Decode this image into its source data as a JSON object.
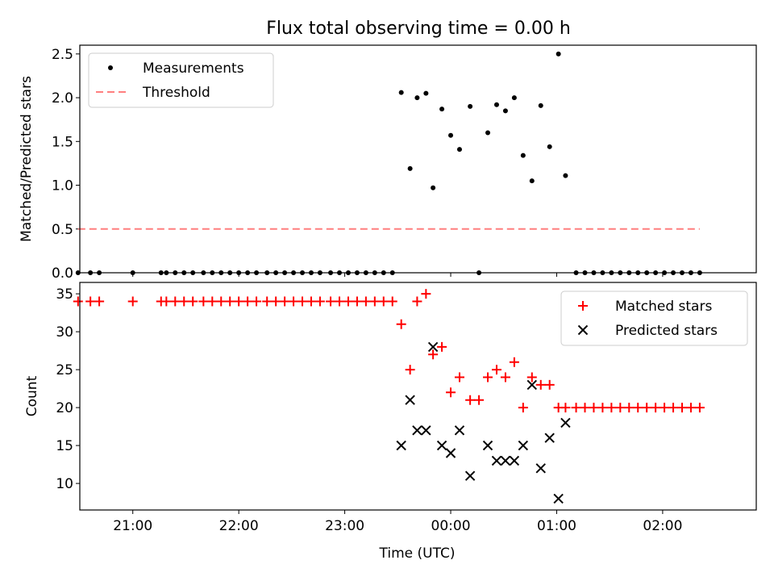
{
  "chart_data": [
    {
      "type": "scatter",
      "title": "Flux total observing time = 0.00 h",
      "ylabel": "Matched/Predicted stars",
      "xlabel": "",
      "xlim": [
        "20:30",
        "02:53"
      ],
      "ylim": [
        0,
        2.6
      ],
      "yticks": [
        "0.0",
        "0.5",
        "1.0",
        "1.5",
        "2.0",
        "2.5"
      ],
      "legend_position": "top-left",
      "series": [
        {
          "name": "Measurements",
          "marker": "dot",
          "color": "#000000",
          "x": [
            "20:29",
            "20:36",
            "20:41",
            "21:00",
            "21:16",
            "21:19",
            "21:24",
            "21:29",
            "21:34",
            "21:40",
            "21:45",
            "21:50",
            "21:55",
            "22:00",
            "22:05",
            "22:10",
            "22:16",
            "22:21",
            "22:26",
            "22:31",
            "22:36",
            "22:41",
            "22:46",
            "22:52",
            "22:57",
            "23:02",
            "23:07",
            "23:12",
            "23:17",
            "23:22",
            "23:27",
            "23:32",
            "23:37",
            "23:41",
            "23:46",
            "23:50",
            "23:55",
            "00:00",
            "00:05",
            "00:11",
            "00:16",
            "00:21",
            "00:26",
            "00:31",
            "00:36",
            "00:41",
            "00:46",
            "00:51",
            "00:56",
            "01:01",
            "01:05",
            "01:11",
            "01:16",
            "01:21",
            "01:26",
            "01:31",
            "01:36",
            "01:41",
            "01:46",
            "01:51",
            "01:56",
            "02:01",
            "02:06",
            "02:11",
            "02:16",
            "02:21"
          ],
          "y": [
            0,
            0,
            0,
            0,
            0,
            0,
            0,
            0,
            0,
            0,
            0,
            0,
            0,
            0,
            0,
            0,
            0,
            0,
            0,
            0,
            0,
            0,
            0,
            0,
            0,
            0,
            0,
            0,
            0,
            0,
            0,
            2.06,
            1.19,
            2.0,
            2.05,
            0.97,
            1.87,
            1.57,
            1.41,
            1.9,
            0,
            1.6,
            1.92,
            1.85,
            2.0,
            1.34,
            1.05,
            1.91,
            1.44,
            2.5,
            1.11,
            0,
            0,
            0,
            0,
            0,
            0,
            0,
            0,
            0,
            0,
            0,
            0,
            0,
            0,
            0
          ]
        },
        {
          "name": "Threshold",
          "style": "dashed",
          "color": "#ff7f7f",
          "x": [
            "20:29",
            "02:21"
          ],
          "y": [
            0.5,
            0.5
          ]
        }
      ]
    },
    {
      "type": "scatter",
      "title": "",
      "ylabel": "Count",
      "xlabel": "Time (UTC)",
      "xlim": [
        "20:30",
        "02:53"
      ],
      "ylim": [
        6.5,
        36.5
      ],
      "yticks": [
        "10",
        "15",
        "20",
        "25",
        "30",
        "35"
      ],
      "xticks": [
        "21:00",
        "22:00",
        "23:00",
        "00:00",
        "01:00",
        "02:00"
      ],
      "legend_position": "top-right",
      "series": [
        {
          "name": "Matched stars",
          "marker": "plus",
          "color": "#ff0000",
          "x": [
            "20:29",
            "20:36",
            "20:41",
            "21:00",
            "21:16",
            "21:19",
            "21:24",
            "21:29",
            "21:34",
            "21:40",
            "21:45",
            "21:50",
            "21:55",
            "22:00",
            "22:05",
            "22:10",
            "22:16",
            "22:21",
            "22:26",
            "22:31",
            "22:36",
            "22:41",
            "22:46",
            "22:52",
            "22:57",
            "23:02",
            "23:07",
            "23:12",
            "23:17",
            "23:22",
            "23:27",
            "23:32",
            "23:37",
            "23:41",
            "23:46",
            "23:50",
            "23:55",
            "00:00",
            "00:05",
            "00:11",
            "00:16",
            "00:21",
            "00:26",
            "00:31",
            "00:36",
            "00:41",
            "00:46",
            "00:51",
            "00:56",
            "01:01",
            "01:05",
            "01:11",
            "01:16",
            "01:21",
            "01:26",
            "01:31",
            "01:36",
            "01:41",
            "01:46",
            "01:51",
            "01:56",
            "02:01",
            "02:06",
            "02:11",
            "02:16",
            "02:21"
          ],
          "y": [
            34,
            34,
            34,
            34,
            34,
            34,
            34,
            34,
            34,
            34,
            34,
            34,
            34,
            34,
            34,
            34,
            34,
            34,
            34,
            34,
            34,
            34,
            34,
            34,
            34,
            34,
            34,
            34,
            34,
            34,
            34,
            31,
            25,
            34,
            35,
            27,
            28,
            22,
            24,
            21,
            21,
            24,
            25,
            24,
            26,
            20,
            24,
            23,
            23,
            20,
            20,
            20,
            20,
            20,
            20,
            20,
            20,
            20,
            20,
            20,
            20,
            20,
            20,
            20,
            20,
            20
          ]
        },
        {
          "name": "Predicted stars",
          "marker": "x",
          "color": "#000000",
          "x": [
            "23:32",
            "23:37",
            "23:41",
            "23:46",
            "23:50",
            "23:55",
            "00:00",
            "00:05",
            "00:11",
            "00:21",
            "00:26",
            "00:31",
            "00:36",
            "00:41",
            "00:46",
            "00:51",
            "00:56",
            "01:01",
            "01:05"
          ],
          "y": [
            15,
            21,
            17,
            17,
            28,
            15,
            14,
            17,
            11,
            15,
            13,
            13,
            13,
            15,
            23,
            12,
            16,
            8,
            18
          ]
        }
      ]
    }
  ]
}
